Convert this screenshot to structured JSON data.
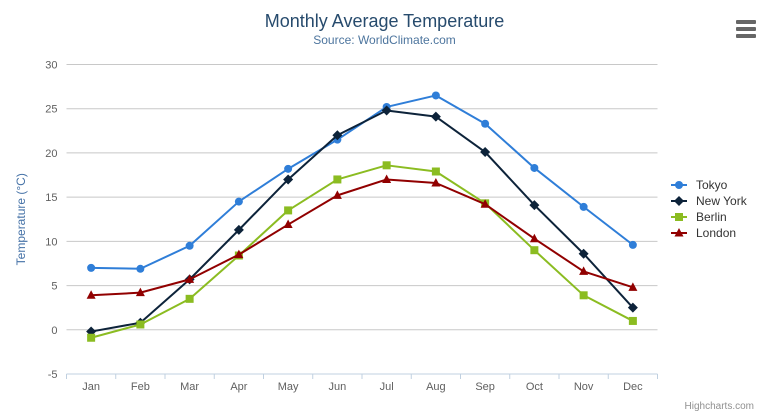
{
  "chart_data": {
    "type": "line",
    "title": "Monthly Average Temperature",
    "subtitle": "Source: WorldClimate.com",
    "ylabel": "Temperature (°C)",
    "ylim": [
      -5,
      30
    ],
    "ytick_interval": 5,
    "grid": true,
    "legend_position": "right",
    "categories": [
      "Jan",
      "Feb",
      "Mar",
      "Apr",
      "May",
      "Jun",
      "Jul",
      "Aug",
      "Sep",
      "Oct",
      "Nov",
      "Dec"
    ],
    "series": [
      {
        "name": "Tokyo",
        "color": "#2f7ed8",
        "marker": "circle",
        "values": [
          7.0,
          6.9,
          9.5,
          14.5,
          18.2,
          21.5,
          25.2,
          26.5,
          23.3,
          18.3,
          13.9,
          9.6
        ]
      },
      {
        "name": "New York",
        "color": "#0d233a",
        "marker": "diamond",
        "values": [
          -0.2,
          0.8,
          5.7,
          11.3,
          17.0,
          22.0,
          24.8,
          24.1,
          20.1,
          14.1,
          8.6,
          2.5
        ]
      },
      {
        "name": "Berlin",
        "color": "#8bbc21",
        "marker": "square",
        "values": [
          -0.9,
          0.6,
          3.5,
          8.4,
          13.5,
          17.0,
          18.6,
          17.9,
          14.3,
          9.0,
          3.9,
          1.0
        ]
      },
      {
        "name": "London",
        "color": "#910000",
        "marker": "triangle",
        "values": [
          3.9,
          4.2,
          5.7,
          8.5,
          11.9,
          15.2,
          17.0,
          16.6,
          14.2,
          10.3,
          6.6,
          4.8
        ]
      }
    ],
    "credit": "Highcharts.com"
  },
  "menu": {
    "icon": "hamburger-icon"
  },
  "theme": {
    "title_color": "#274b6d",
    "subtitle_color": "#4d759e",
    "axis_title_color": "#4572a7",
    "tick_label_color": "#606060",
    "gridline_color": "#c8c8c8",
    "axis_line_color": "#c0d0e0",
    "legend_text_color": "#333333",
    "credit_color": "#909090",
    "menu_icon_color": "#666666",
    "background": "#ffffff"
  }
}
